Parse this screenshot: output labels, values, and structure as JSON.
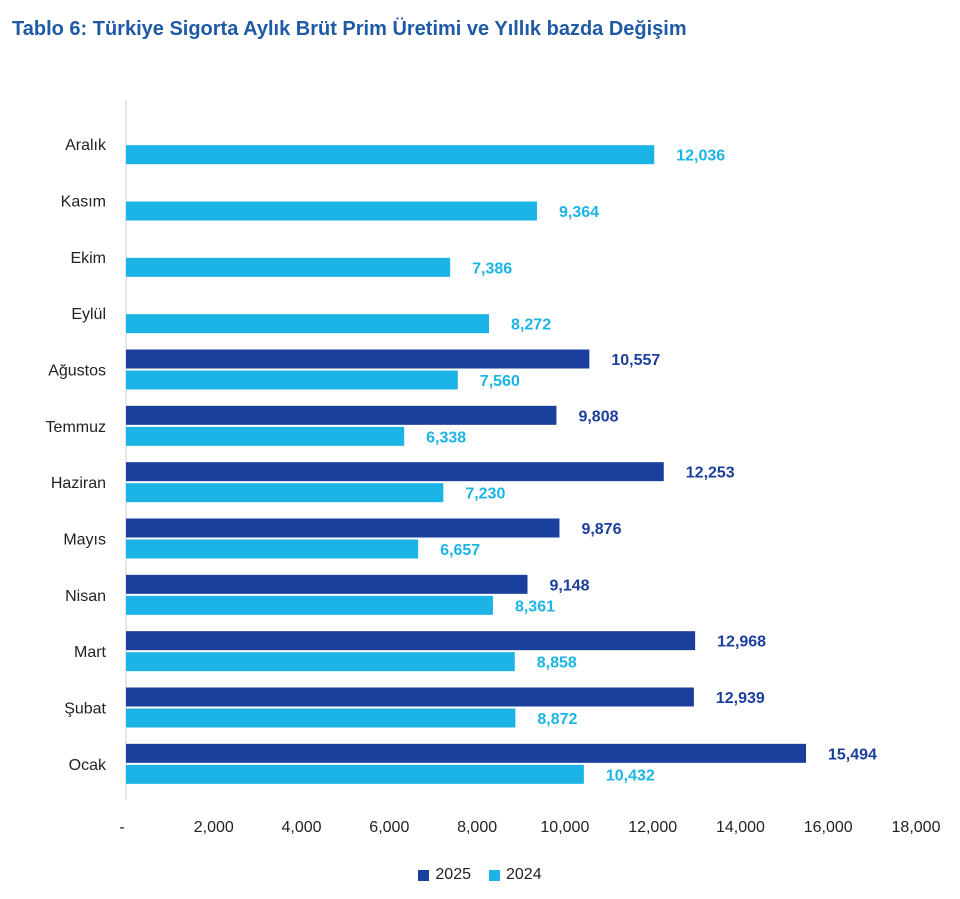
{
  "title": "Tablo 6: Türkiye Sigorta Aylık Brüt Prim Üretimi ve Yıllık bazda Değişim",
  "chart_data": {
    "type": "bar",
    "orientation": "horizontal",
    "categories": [
      "Ocak",
      "Şubat",
      "Mart",
      "Nisan",
      "Mayıs",
      "Haziran",
      "Temmuz",
      "Ağustos",
      "Eylül",
      "Ekim",
      "Kasım",
      "Aralık"
    ],
    "series": [
      {
        "name": "2025",
        "color": "#1b3f9c",
        "values": [
          15494,
          12939,
          12968,
          9148,
          9876,
          12253,
          9808,
          10557,
          null,
          null,
          null,
          null
        ],
        "labels": [
          "15,494",
          "12,939",
          "12,968",
          "9,148",
          "9,876",
          "12,253",
          "9,808",
          "10,557",
          "",
          "",
          "",
          ""
        ]
      },
      {
        "name": "2024",
        "color": "#1cb4e6",
        "values": [
          10432,
          8872,
          8858,
          8361,
          6657,
          7230,
          6338,
          7560,
          8272,
          7386,
          9364,
          12036
        ],
        "labels": [
          "10,432",
          "8,872",
          "8,858",
          "8,361",
          "6,657",
          "7,230",
          "6,338",
          "7,560",
          "8,272",
          "7,386",
          "9,364",
          "12,036"
        ]
      }
    ],
    "xlim": [
      0,
      18000
    ],
    "x_ticks": [
      0,
      2000,
      4000,
      6000,
      8000,
      10000,
      12000,
      14000,
      16000,
      18000
    ],
    "x_tick_labels": [
      "-",
      "2,000",
      "4,000",
      "6,000",
      "8,000",
      "10,000",
      "12,000",
      "14,000",
      "16,000",
      "18,000"
    ],
    "grid": false,
    "legend_position": "bottom"
  }
}
